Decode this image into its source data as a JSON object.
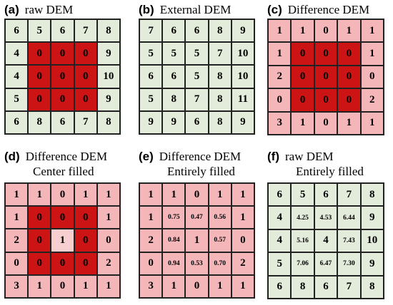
{
  "colors": {
    "green": "#e3ecda",
    "pink": "#f4b6b8",
    "red": "#cc1414",
    "light_pink": "#f7cfd0",
    "grid_line": "#222222"
  },
  "panels": [
    {
      "letter": "(a)",
      "title1": "raw DEM",
      "title2": "",
      "cells": [
        [
          "6",
          "5",
          "6",
          "7",
          "8"
        ],
        [
          "4",
          "0",
          "0",
          "0",
          "9"
        ],
        [
          "4",
          "0",
          "0",
          "0",
          "10"
        ],
        [
          "5",
          "0",
          "0",
          "0",
          "9"
        ],
        [
          "6",
          "8",
          "6",
          "7",
          "8"
        ]
      ],
      "fills": [
        [
          "g",
          "g",
          "g",
          "g",
          "g"
        ],
        [
          "g",
          "r",
          "r",
          "r",
          "g"
        ],
        [
          "g",
          "r",
          "r",
          "r",
          "g"
        ],
        [
          "g",
          "r",
          "r",
          "r",
          "g"
        ],
        [
          "g",
          "g",
          "g",
          "g",
          "g"
        ]
      ]
    },
    {
      "letter": "(b)",
      "title1": "External DEM",
      "title2": "",
      "cells": [
        [
          "7",
          "6",
          "6",
          "8",
          "9"
        ],
        [
          "5",
          "5",
          "5",
          "7",
          "10"
        ],
        [
          "6",
          "6",
          "5",
          "8",
          "10"
        ],
        [
          "5",
          "8",
          "7",
          "8",
          "11"
        ],
        [
          "9",
          "9",
          "6",
          "8",
          "9"
        ]
      ],
      "fills": [
        [
          "g",
          "g",
          "g",
          "g",
          "g"
        ],
        [
          "g",
          "g",
          "g",
          "g",
          "g"
        ],
        [
          "g",
          "g",
          "g",
          "g",
          "g"
        ],
        [
          "g",
          "g",
          "g",
          "g",
          "g"
        ],
        [
          "g",
          "g",
          "g",
          "g",
          "g"
        ]
      ]
    },
    {
      "letter": "(c)",
      "title1": "Difference DEM",
      "title2": "",
      "cells": [
        [
          "1",
          "1",
          "0",
          "1",
          "1"
        ],
        [
          "1",
          "0",
          "0",
          "0",
          "1"
        ],
        [
          "2",
          "0",
          "0",
          "0",
          "0"
        ],
        [
          "0",
          "0",
          "0",
          "0",
          "2"
        ],
        [
          "3",
          "1",
          "0",
          "1",
          "1"
        ]
      ],
      "fills": [
        [
          "p",
          "p",
          "p",
          "p",
          "p"
        ],
        [
          "p",
          "r",
          "r",
          "r",
          "p"
        ],
        [
          "p",
          "r",
          "r",
          "r",
          "p"
        ],
        [
          "p",
          "r",
          "r",
          "r",
          "p"
        ],
        [
          "p",
          "p",
          "p",
          "p",
          "p"
        ]
      ]
    },
    {
      "letter": "(d)",
      "title1": "Difference DEM",
      "title2": "Center filled",
      "cells": [
        [
          "1",
          "1",
          "0",
          "1",
          "1"
        ],
        [
          "1",
          "0",
          "0",
          "0",
          "1"
        ],
        [
          "2",
          "0",
          "1",
          "0",
          "0"
        ],
        [
          "0",
          "0",
          "0",
          "0",
          "2"
        ],
        [
          "3",
          "1",
          "0",
          "1",
          "1"
        ]
      ],
      "fills": [
        [
          "p",
          "p",
          "p",
          "p",
          "p"
        ],
        [
          "p",
          "r",
          "r",
          "r",
          "p"
        ],
        [
          "p",
          "r",
          "lp",
          "r",
          "p"
        ],
        [
          "p",
          "r",
          "r",
          "r",
          "p"
        ],
        [
          "p",
          "p",
          "p",
          "p",
          "p"
        ]
      ]
    },
    {
      "letter": "(e)",
      "title1": "Difference DEM",
      "title2": "Entirely filled",
      "cells": [
        [
          "1",
          "1",
          "0",
          "1",
          "1"
        ],
        [
          "1",
          "0.75",
          "0.47",
          "0.56",
          "1"
        ],
        [
          "2",
          "0.84",
          "1",
          "0.57",
          "0"
        ],
        [
          "0",
          "0.94",
          "0.53",
          "0.70",
          "2"
        ],
        [
          "3",
          "1",
          "0",
          "1",
          "1"
        ]
      ],
      "fills": [
        [
          "p",
          "p",
          "p",
          "p",
          "p"
        ],
        [
          "p",
          "p",
          "p",
          "p",
          "p"
        ],
        [
          "p",
          "p",
          "p",
          "p",
          "p"
        ],
        [
          "p",
          "p",
          "p",
          "p",
          "p"
        ],
        [
          "p",
          "p",
          "p",
          "p",
          "p"
        ]
      ]
    },
    {
      "letter": "(f)",
      "title1": "raw DEM",
      "title2": "Entirely filled",
      "cells": [
        [
          "6",
          "5",
          "6",
          "7",
          "8"
        ],
        [
          "4",
          "4.25",
          "4.53",
          "6.44",
          "9"
        ],
        [
          "4",
          "5.16",
          "4",
          "7.43",
          "10"
        ],
        [
          "5",
          "7.06",
          "6.47",
          "7.30",
          "9"
        ],
        [
          "6",
          "8",
          "6",
          "7",
          "8"
        ]
      ],
      "fills": [
        [
          "g",
          "g",
          "g",
          "g",
          "g"
        ],
        [
          "g",
          "g",
          "g",
          "g",
          "g"
        ],
        [
          "g",
          "g",
          "g",
          "g",
          "g"
        ],
        [
          "g",
          "g",
          "g",
          "g",
          "g"
        ],
        [
          "g",
          "g",
          "g",
          "g",
          "g"
        ]
      ]
    }
  ]
}
